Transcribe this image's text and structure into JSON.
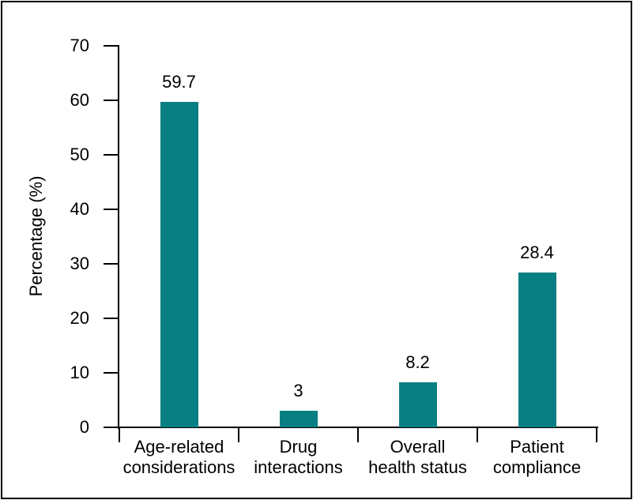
{
  "figure": {
    "background": "#ffffff",
    "border_color": "#000000"
  },
  "chart_data": {
    "type": "bar",
    "categories": [
      "Age-related considerations",
      "Drug interactions",
      "Overall health status",
      "Patient compliance"
    ],
    "category_lines": [
      [
        "Age-related",
        "considerations"
      ],
      [
        "Drug",
        "interactions"
      ],
      [
        "Overall",
        "health status"
      ],
      [
        "Patient",
        "compliance"
      ]
    ],
    "values": [
      59.7,
      3,
      8.2,
      28.4
    ],
    "value_labels": [
      "59.7",
      "3",
      "8.2",
      "28.4"
    ],
    "ylabel": "Percentage (%)",
    "yticks": [
      0,
      10,
      20,
      30,
      40,
      50,
      60,
      70
    ],
    "ylim": [
      0,
      70
    ],
    "grid": false,
    "legend": "none",
    "bar_color": "#087F82",
    "axis_color": "#000000",
    "text_color": "#000000"
  }
}
